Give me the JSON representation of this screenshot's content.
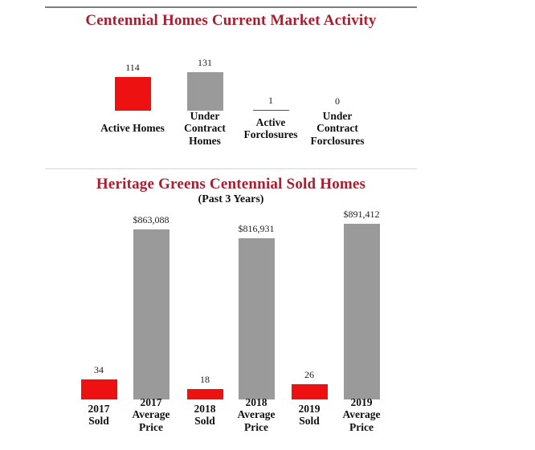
{
  "palette": {
    "title": "#A81E2E",
    "bar_red": "#EE1111",
    "bar_gray": "#9A9A9A"
  },
  "chart_data": [
    {
      "type": "bar",
      "title": "Centennial Homes Current Market Activity",
      "xlabel": "",
      "ylabel": "",
      "grid": false,
      "legend": false,
      "categories": [
        "Active Homes",
        "Under Contract Homes",
        "Active Forclosures",
        "Under Contract Forclosures"
      ],
      "values": [
        114,
        131,
        1,
        0
      ],
      "bars": [
        {
          "category": "Active Homes",
          "value": 114,
          "value_label": "114",
          "color": "#EE1111",
          "axis": "count"
        },
        {
          "category": "Under Contract\nHomes",
          "value": 131,
          "value_label": "131",
          "color": "#9A9A9A",
          "axis": "count"
        },
        {
          "category": "Active\nForclosures",
          "value": 1,
          "value_label": "1",
          "color": "#EE1111",
          "axis": "count"
        },
        {
          "category": "Under Contract\nForclosures",
          "value": 0,
          "value_label": "0",
          "color": "#EE1111",
          "axis": "count"
        }
      ]
    },
    {
      "type": "bar",
      "title": "Heritage Greens Centennial Sold Homes",
      "subtitle": "(Past 3 Years)",
      "xlabel": "",
      "ylabel": "",
      "grid": false,
      "legend": false,
      "categories": [
        "2017 Sold",
        "2017 Average Price",
        "2018 Sold",
        "2018 Average Price",
        "2019 Sold",
        "2019 Average Price"
      ],
      "values": [
        34,
        863088,
        18,
        816931,
        26,
        891412
      ],
      "bars": [
        {
          "category": "2017\nSold",
          "value": 34,
          "value_label": "34",
          "color": "#EE1111",
          "axis": "count"
        },
        {
          "category": "2017\nAverage Price",
          "value": 863088,
          "value_label": "$863,088",
          "color": "#9A9A9A",
          "axis": "price"
        },
        {
          "category": "2018\nSold",
          "value": 18,
          "value_label": "18",
          "color": "#EE1111",
          "axis": "count"
        },
        {
          "category": "2018\nAverage Price",
          "value": 816931,
          "value_label": "$816,931",
          "color": "#9A9A9A",
          "axis": "price"
        },
        {
          "category": "2019\nSold",
          "value": 26,
          "value_label": "26",
          "color": "#EE1111",
          "axis": "count"
        },
        {
          "category": "2019\nAverage Price",
          "value": 891412,
          "value_label": "$891,412",
          "color": "#9A9A9A",
          "axis": "price"
        }
      ]
    }
  ]
}
